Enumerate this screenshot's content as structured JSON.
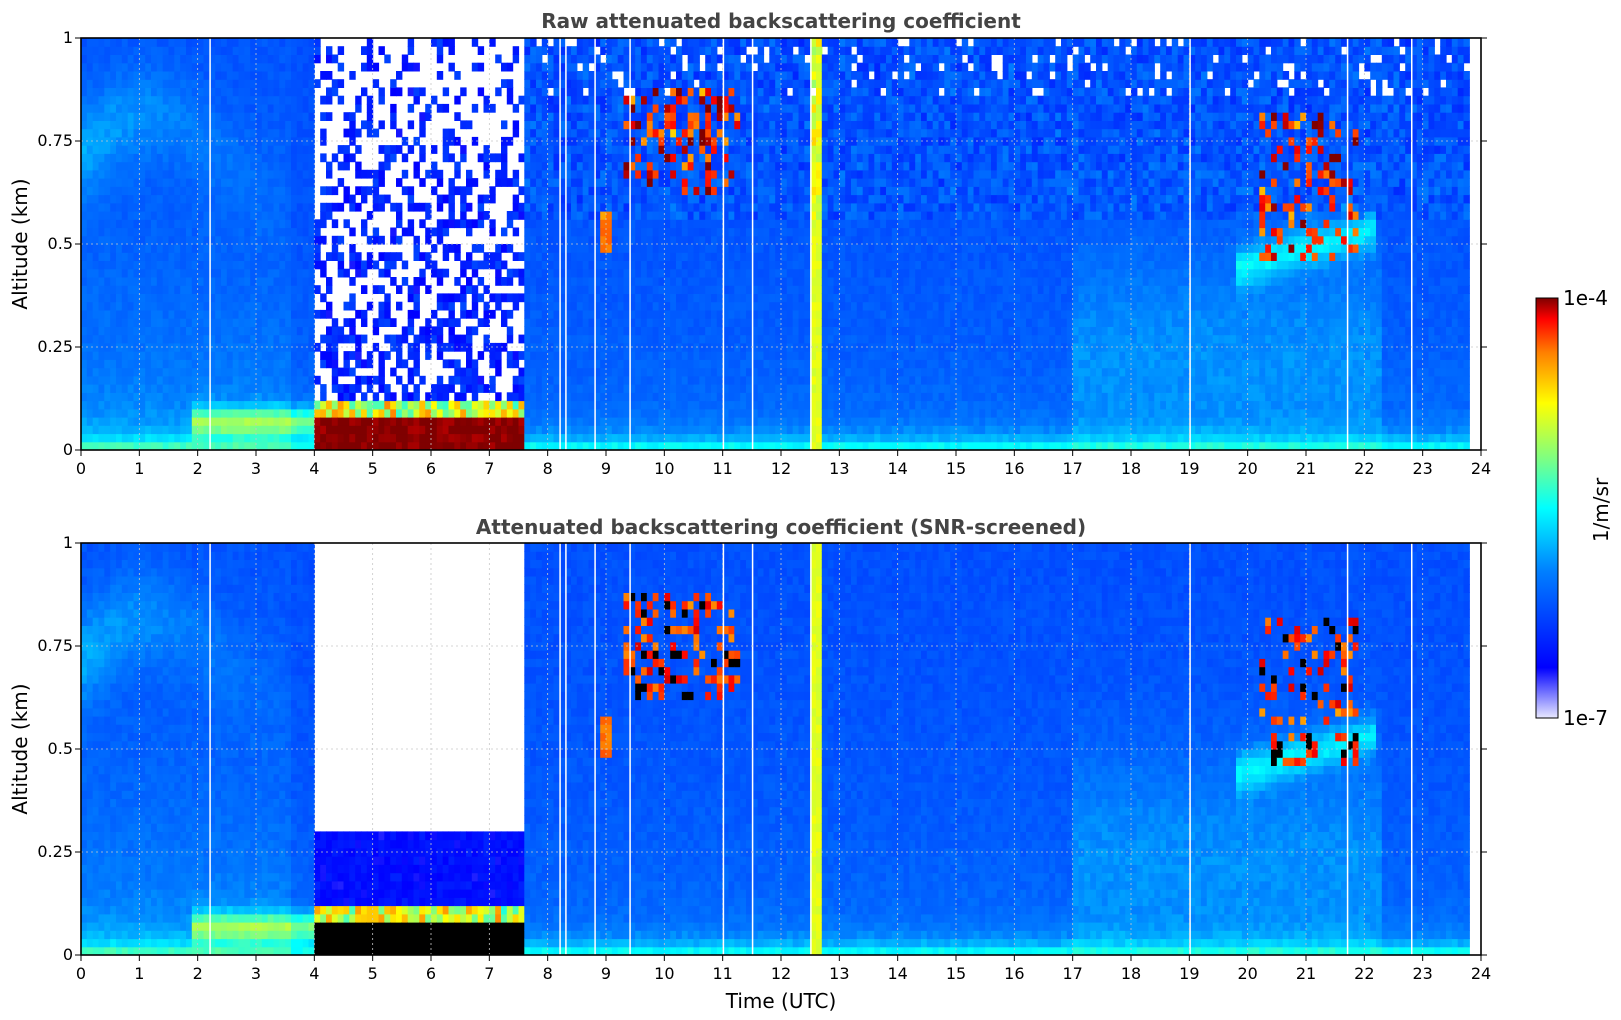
{
  "chart_data": [
    {
      "type": "heatmap",
      "title": "Raw attenuated backscattering coefficient",
      "xlabel": "",
      "ylabel": "Altitude (km)",
      "xlim": [
        0,
        24
      ],
      "ylim": [
        0,
        1
      ],
      "x_ticks": [
        "0",
        "1",
        "2",
        "3",
        "4",
        "5",
        "6",
        "7",
        "8",
        "9",
        "10",
        "11",
        "12",
        "13",
        "14",
        "15",
        "16",
        "17",
        "18",
        "19",
        "20",
        "21",
        "22",
        "23",
        "24"
      ],
      "y_ticks": [
        "0",
        "0.25",
        "0.5",
        "0.75",
        "1"
      ],
      "grid": true,
      "data_end_hour": 23.8,
      "features": [
        {
          "kind": "surface-layer",
          "x_start": 4.0,
          "x_end": 7.6,
          "y_top": 0.08,
          "level": "max"
        },
        {
          "kind": "noise-region",
          "x_start": 4.0,
          "x_end": 7.6,
          "y_bottom": 0.12,
          "y_top": 1.0
        },
        {
          "kind": "vertical-streak",
          "x_start": 12.55,
          "x_end": 12.7
        },
        {
          "kind": "cloud",
          "x_start": 9.4,
          "x_end": 11.3,
          "y_bottom": 0.65,
          "y_top": 0.85
        },
        {
          "kind": "cloud",
          "x_start": 20.2,
          "x_end": 21.9,
          "y_bottom": 0.45,
          "y_top": 0.8
        }
      ]
    },
    {
      "type": "heatmap",
      "title": "Attenuated backscattering coefficient (SNR-screened)",
      "xlabel": "Time (UTC)",
      "ylabel": "Altitude (km)",
      "xlim": [
        0,
        24
      ],
      "ylim": [
        0,
        1
      ],
      "x_ticks": [
        "0",
        "1",
        "2",
        "3",
        "4",
        "5",
        "6",
        "7",
        "8",
        "9",
        "10",
        "11",
        "12",
        "13",
        "14",
        "15",
        "16",
        "17",
        "18",
        "19",
        "20",
        "21",
        "22",
        "23",
        "24"
      ],
      "y_ticks": [
        "0",
        "0.25",
        "0.5",
        "0.75",
        "1"
      ],
      "grid": true,
      "data_end_hour": 23.8,
      "features": [
        {
          "kind": "surface-layer-saturated",
          "x_start": 3.85,
          "x_end": 7.6,
          "y_top": 0.08,
          "level": "saturated"
        },
        {
          "kind": "screened-region",
          "x_start": 4.0,
          "x_end": 7.6,
          "y_bottom": 0.3,
          "y_top": 1.0
        },
        {
          "kind": "vertical-streak",
          "x_start": 12.55,
          "x_end": 12.7
        },
        {
          "kind": "cloud",
          "x_start": 9.4,
          "x_end": 11.3,
          "y_bottom": 0.65,
          "y_top": 0.85
        },
        {
          "kind": "cloud",
          "x_start": 20.2,
          "x_end": 21.9,
          "y_bottom": 0.45,
          "y_top": 0.8
        }
      ]
    }
  ],
  "colorbar": {
    "label": "1/m/sr",
    "max_label": "1e-4",
    "min_label": "1e-7",
    "scale": "log",
    "colormap": "jet",
    "colors": [
      "#7f0000",
      "#ff0000",
      "#ff8000",
      "#ffff00",
      "#80ff80",
      "#00ffff",
      "#0080ff",
      "#0000ff",
      "#e8e8ff"
    ]
  }
}
